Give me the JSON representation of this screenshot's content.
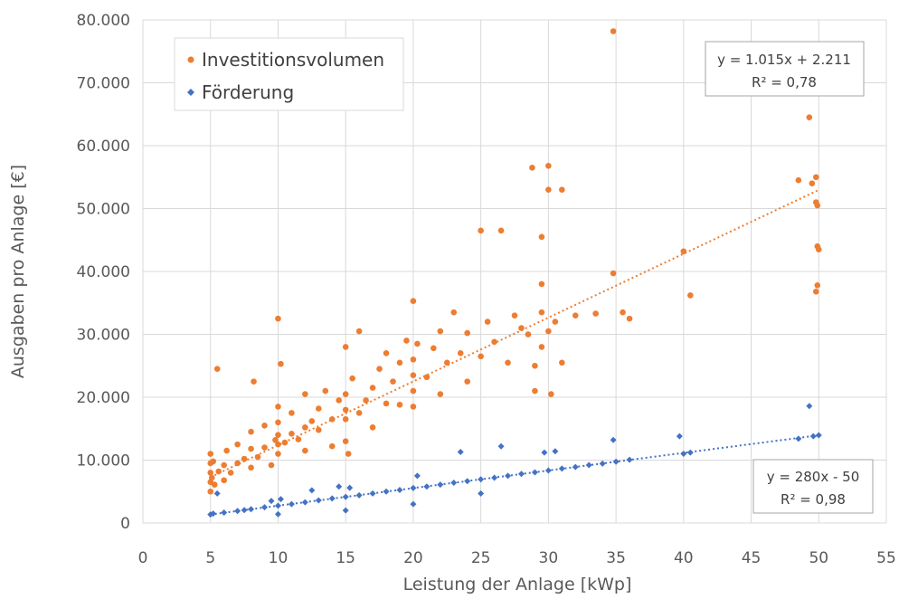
{
  "chart_data": {
    "type": "scatter",
    "title": "",
    "xlabel": "Leistung der Anlage [kWp]",
    "ylabel": "Ausgaben pro Anlage [€]",
    "xlim": [
      0,
      55
    ],
    "ylim": [
      0,
      80000
    ],
    "grid": true,
    "legend_position": "top-left",
    "x_ticks": [
      "0",
      "5",
      "10",
      "15",
      "20",
      "25",
      "30",
      "35",
      "40",
      "45",
      "50",
      "55"
    ],
    "y_ticks": [
      "0",
      "10.000",
      "20.000",
      "30.000",
      "40.000",
      "50.000",
      "60.000",
      "70.000",
      "80.000"
    ],
    "series": [
      {
        "name": "Investitionsvolumen",
        "marker": "circle",
        "color": "#ED7D31",
        "trendline": {
          "slope": 1015,
          "intercept": 2211,
          "equation": "y = 1.015x + 2.211",
          "r2": "R² = 0,78"
        },
        "points": [
          [
            5,
            5000
          ],
          [
            5,
            6500
          ],
          [
            5,
            8000
          ],
          [
            5,
            9500
          ],
          [
            5,
            11000
          ],
          [
            5.1,
            7200
          ],
          [
            5.2,
            9800
          ],
          [
            5.3,
            6100
          ],
          [
            5.5,
            24500
          ],
          [
            5.6,
            8200
          ],
          [
            6,
            6800
          ],
          [
            6,
            9200
          ],
          [
            6.2,
            11500
          ],
          [
            6.5,
            8000
          ],
          [
            7,
            9500
          ],
          [
            7,
            12500
          ],
          [
            7.5,
            10200
          ],
          [
            8,
            8800
          ],
          [
            8,
            11800
          ],
          [
            8,
            14500
          ],
          [
            8.2,
            22500
          ],
          [
            8.5,
            10500
          ],
          [
            9,
            12000
          ],
          [
            9,
            15500
          ],
          [
            9.5,
            9200
          ],
          [
            9.8,
            13200
          ],
          [
            10,
            11000
          ],
          [
            10,
            12500
          ],
          [
            10,
            14000
          ],
          [
            10,
            16000
          ],
          [
            10,
            18500
          ],
          [
            10,
            32500
          ],
          [
            10.2,
            25300
          ],
          [
            10.5,
            12800
          ],
          [
            11,
            14200
          ],
          [
            11,
            17500
          ],
          [
            11.5,
            13300
          ],
          [
            12,
            15200
          ],
          [
            12,
            11500
          ],
          [
            12,
            20500
          ],
          [
            12.5,
            16200
          ],
          [
            13,
            14800
          ],
          [
            13,
            18200
          ],
          [
            13.5,
            21000
          ],
          [
            14,
            16500
          ],
          [
            14,
            12200
          ],
          [
            14.5,
            19500
          ],
          [
            15,
            13000
          ],
          [
            15,
            16500
          ],
          [
            15,
            18000
          ],
          [
            15,
            20500
          ],
          [
            15,
            28000
          ],
          [
            15.2,
            11000
          ],
          [
            15.5,
            23000
          ],
          [
            16,
            17500
          ],
          [
            16,
            30500
          ],
          [
            16.5,
            19500
          ],
          [
            17,
            21500
          ],
          [
            17,
            15200
          ],
          [
            17.5,
            24500
          ],
          [
            18,
            19000
          ],
          [
            18,
            27000
          ],
          [
            18.5,
            22500
          ],
          [
            19,
            18800
          ],
          [
            19,
            25500
          ],
          [
            19.5,
            29000
          ],
          [
            20,
            18500
          ],
          [
            20,
            21000
          ],
          [
            20,
            23500
          ],
          [
            20,
            26000
          ],
          [
            20,
            35300
          ],
          [
            20.3,
            28500
          ],
          [
            21,
            23200
          ],
          [
            21.5,
            27800
          ],
          [
            22,
            20500
          ],
          [
            22,
            30500
          ],
          [
            22.5,
            25500
          ],
          [
            23,
            33500
          ],
          [
            23.5,
            27000
          ],
          [
            24,
            22500
          ],
          [
            24,
            30200
          ],
          [
            25,
            26500
          ],
          [
            25,
            46500
          ],
          [
            25.5,
            32000
          ],
          [
            26,
            28800
          ],
          [
            26.5,
            46500
          ],
          [
            27,
            25500
          ],
          [
            27.5,
            33000
          ],
          [
            28,
            31000
          ],
          [
            28.5,
            30000
          ],
          [
            28.8,
            56500
          ],
          [
            29,
            21000
          ],
          [
            29,
            25000
          ],
          [
            29.5,
            28000
          ],
          [
            29.5,
            33500
          ],
          [
            29.5,
            38000
          ],
          [
            29.5,
            45500
          ],
          [
            30,
            30500
          ],
          [
            30,
            53000
          ],
          [
            30,
            56800
          ],
          [
            30.2,
            20500
          ],
          [
            30.5,
            32000
          ],
          [
            31,
            25500
          ],
          [
            31,
            53000
          ],
          [
            32,
            33000
          ],
          [
            33.5,
            33300
          ],
          [
            34.8,
            78200
          ],
          [
            34.8,
            39700
          ],
          [
            35.5,
            33500
          ],
          [
            36,
            32500
          ],
          [
            40,
            43200
          ],
          [
            40.5,
            36200
          ],
          [
            48.5,
            54500
          ],
          [
            49.3,
            64500
          ],
          [
            49.5,
            54000
          ],
          [
            49.8,
            55000
          ],
          [
            49.8,
            51000
          ],
          [
            49.9,
            50500
          ],
          [
            49.9,
            44000
          ],
          [
            50,
            43500
          ],
          [
            49.9,
            37800
          ],
          [
            49.8,
            36800
          ]
        ]
      },
      {
        "name": "Förderung",
        "marker": "diamond",
        "color": "#4472C4",
        "trendline": {
          "slope": 280,
          "intercept": -50,
          "equation": "y = 280x - 50",
          "r2": "R² = 0,98"
        },
        "points": [
          [
            5,
            1350
          ],
          [
            5.2,
            1500
          ],
          [
            5.5,
            4700
          ],
          [
            6,
            1650
          ],
          [
            7,
            1900
          ],
          [
            7.5,
            2050
          ],
          [
            8,
            2200
          ],
          [
            9,
            2500
          ],
          [
            9.5,
            3500
          ],
          [
            10,
            2750
          ],
          [
            10,
            1400
          ],
          [
            10.2,
            3800
          ],
          [
            11,
            3000
          ],
          [
            12,
            3300
          ],
          [
            12.5,
            5200
          ],
          [
            13,
            3600
          ],
          [
            14,
            3900
          ],
          [
            14.5,
            5800
          ],
          [
            15,
            4150
          ],
          [
            15,
            2000
          ],
          [
            15.3,
            5600
          ],
          [
            16,
            4400
          ],
          [
            17,
            4700
          ],
          [
            18,
            5000
          ],
          [
            19,
            5250
          ],
          [
            20,
            5550
          ],
          [
            20,
            3000
          ],
          [
            20.3,
            7500
          ],
          [
            21,
            5800
          ],
          [
            22,
            6100
          ],
          [
            23,
            6400
          ],
          [
            23.5,
            11300
          ],
          [
            24,
            6650
          ],
          [
            25,
            6950
          ],
          [
            25,
            4700
          ],
          [
            26,
            7200
          ],
          [
            26.5,
            12200
          ],
          [
            27,
            7500
          ],
          [
            28,
            7800
          ],
          [
            29,
            8050
          ],
          [
            29.7,
            11200
          ],
          [
            30,
            8350
          ],
          [
            30.5,
            11400
          ],
          [
            31,
            8650
          ],
          [
            32,
            8900
          ],
          [
            33,
            9200
          ],
          [
            34,
            9450
          ],
          [
            34.8,
            13200
          ],
          [
            35,
            9750
          ],
          [
            36,
            10050
          ],
          [
            39.7,
            13800
          ],
          [
            40,
            11000
          ],
          [
            40.5,
            11200
          ],
          [
            48.5,
            13400
          ],
          [
            49.3,
            18600
          ],
          [
            49.6,
            13800
          ],
          [
            50,
            13950
          ]
        ]
      }
    ]
  }
}
